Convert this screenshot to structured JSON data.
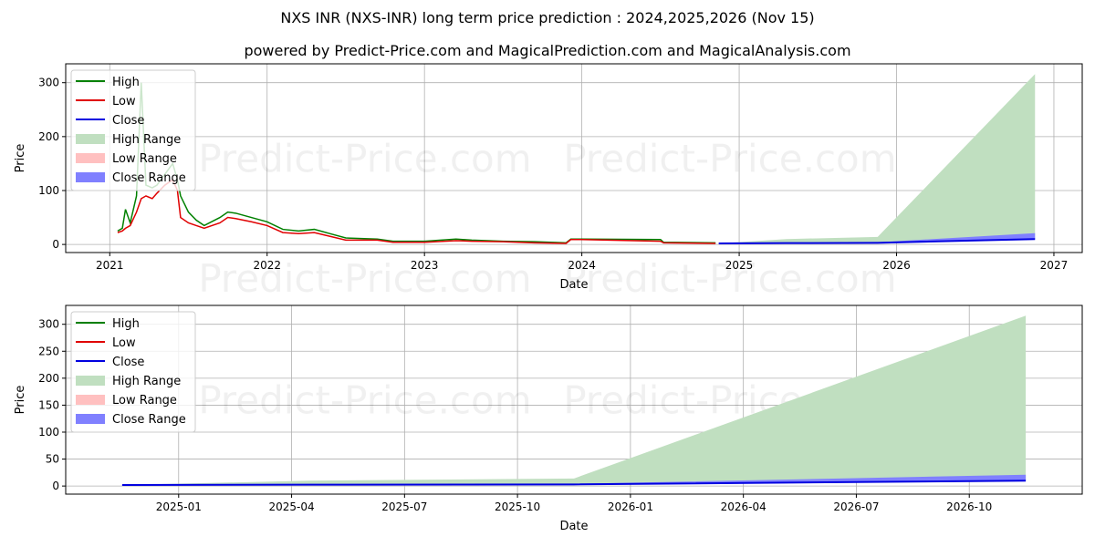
{
  "title": "NXS INR (NXS-INR) long term price prediction : 2024,2025,2026 (Nov 15)",
  "subtitle": "powered by Predict-Price.com and MagicalPrediction.com and MagicalAnalysis.com",
  "watermark": "Predict-Price.com",
  "colors": {
    "high": "#008000",
    "low": "#e00000",
    "close": "#0000e0",
    "high_range": "#c0dfc0",
    "low_range": "#ffc0c0",
    "close_range": "#8080ff"
  },
  "legend": [
    "High",
    "Low",
    "Close",
    "High Range",
    "Low Range",
    "Close Range"
  ],
  "chart_data": [
    {
      "type": "line",
      "xlabel": "Date",
      "ylabel": "Price",
      "xlim": [
        2020.72,
        2027.18
      ],
      "ylim": [
        -15,
        335
      ],
      "xticks": [
        {
          "v": 2021,
          "label": "2021"
        },
        {
          "v": 2022,
          "label": "2022"
        },
        {
          "v": 2023,
          "label": "2023"
        },
        {
          "v": 2024,
          "label": "2024"
        },
        {
          "v": 2025,
          "label": "2025"
        },
        {
          "v": 2026,
          "label": "2026"
        },
        {
          "v": 2027,
          "label": "2027"
        }
      ],
      "yticks": [
        0,
        100,
        200,
        300
      ],
      "history": {
        "x": [
          2021.05,
          2021.08,
          2021.1,
          2021.13,
          2021.17,
          2021.2,
          2021.23,
          2021.27,
          2021.3,
          2021.35,
          2021.4,
          2021.43,
          2021.45,
          2021.5,
          2021.55,
          2021.6,
          2021.7,
          2021.75,
          2021.8,
          2021.9,
          2022.0,
          2022.1,
          2022.2,
          2022.3,
          2022.4,
          2022.5,
          2022.7,
          2022.8,
          2023.0,
          2023.2,
          2023.3,
          2023.5,
          2023.7,
          2023.9,
          2023.93,
          2024.0,
          2024.5,
          2024.52,
          2024.85
        ],
        "high": [
          25,
          30,
          65,
          40,
          90,
          300,
          110,
          105,
          110,
          130,
          150,
          120,
          90,
          60,
          45,
          35,
          50,
          60,
          58,
          50,
          42,
          28,
          25,
          28,
          20,
          12,
          10,
          6,
          6,
          10,
          8,
          6,
          5,
          3,
          10,
          10,
          9,
          4,
          3
        ],
        "low": [
          22,
          25,
          30,
          35,
          60,
          85,
          90,
          85,
          95,
          110,
          120,
          100,
          50,
          40,
          35,
          30,
          40,
          50,
          48,
          42,
          35,
          22,
          20,
          22,
          15,
          8,
          8,
          4,
          4,
          7,
          6,
          5,
          3,
          2,
          9,
          9,
          6,
          3,
          2
        ]
      },
      "forecast": {
        "x": [
          2024.87,
          2025.3,
          2025.88,
          2026.88
        ],
        "close": [
          2,
          2.5,
          3,
          10
        ],
        "high_range_upper": [
          2,
          10,
          14,
          316
        ],
        "close_range_upper": [
          2,
          3,
          4,
          21
        ]
      }
    },
    {
      "type": "line",
      "xlabel": "Date",
      "ylabel": "Price",
      "xlim": [
        -3,
        24
      ],
      "ylim": [
        -15,
        335
      ],
      "x_unit": "months since 2025-01",
      "xticks": [
        {
          "v": 0,
          "label": "2025-01"
        },
        {
          "v": 3,
          "label": "2025-04"
        },
        {
          "v": 6,
          "label": "2025-07"
        },
        {
          "v": 9,
          "label": "2025-10"
        },
        {
          "v": 12,
          "label": "2026-01"
        },
        {
          "v": 15,
          "label": "2026-04"
        },
        {
          "v": 18,
          "label": "2026-07"
        },
        {
          "v": 21,
          "label": "2026-10"
        }
      ],
      "yticks": [
        0,
        50,
        100,
        150,
        200,
        250,
        300
      ],
      "forecast": {
        "x": [
          -1.5,
          3.5,
          10.5,
          22.5
        ],
        "close": [
          2,
          2.5,
          3,
          10
        ],
        "high_range_upper": [
          2,
          10,
          14,
          316
        ],
        "close_range_upper": [
          2,
          3,
          4,
          21
        ]
      }
    }
  ]
}
